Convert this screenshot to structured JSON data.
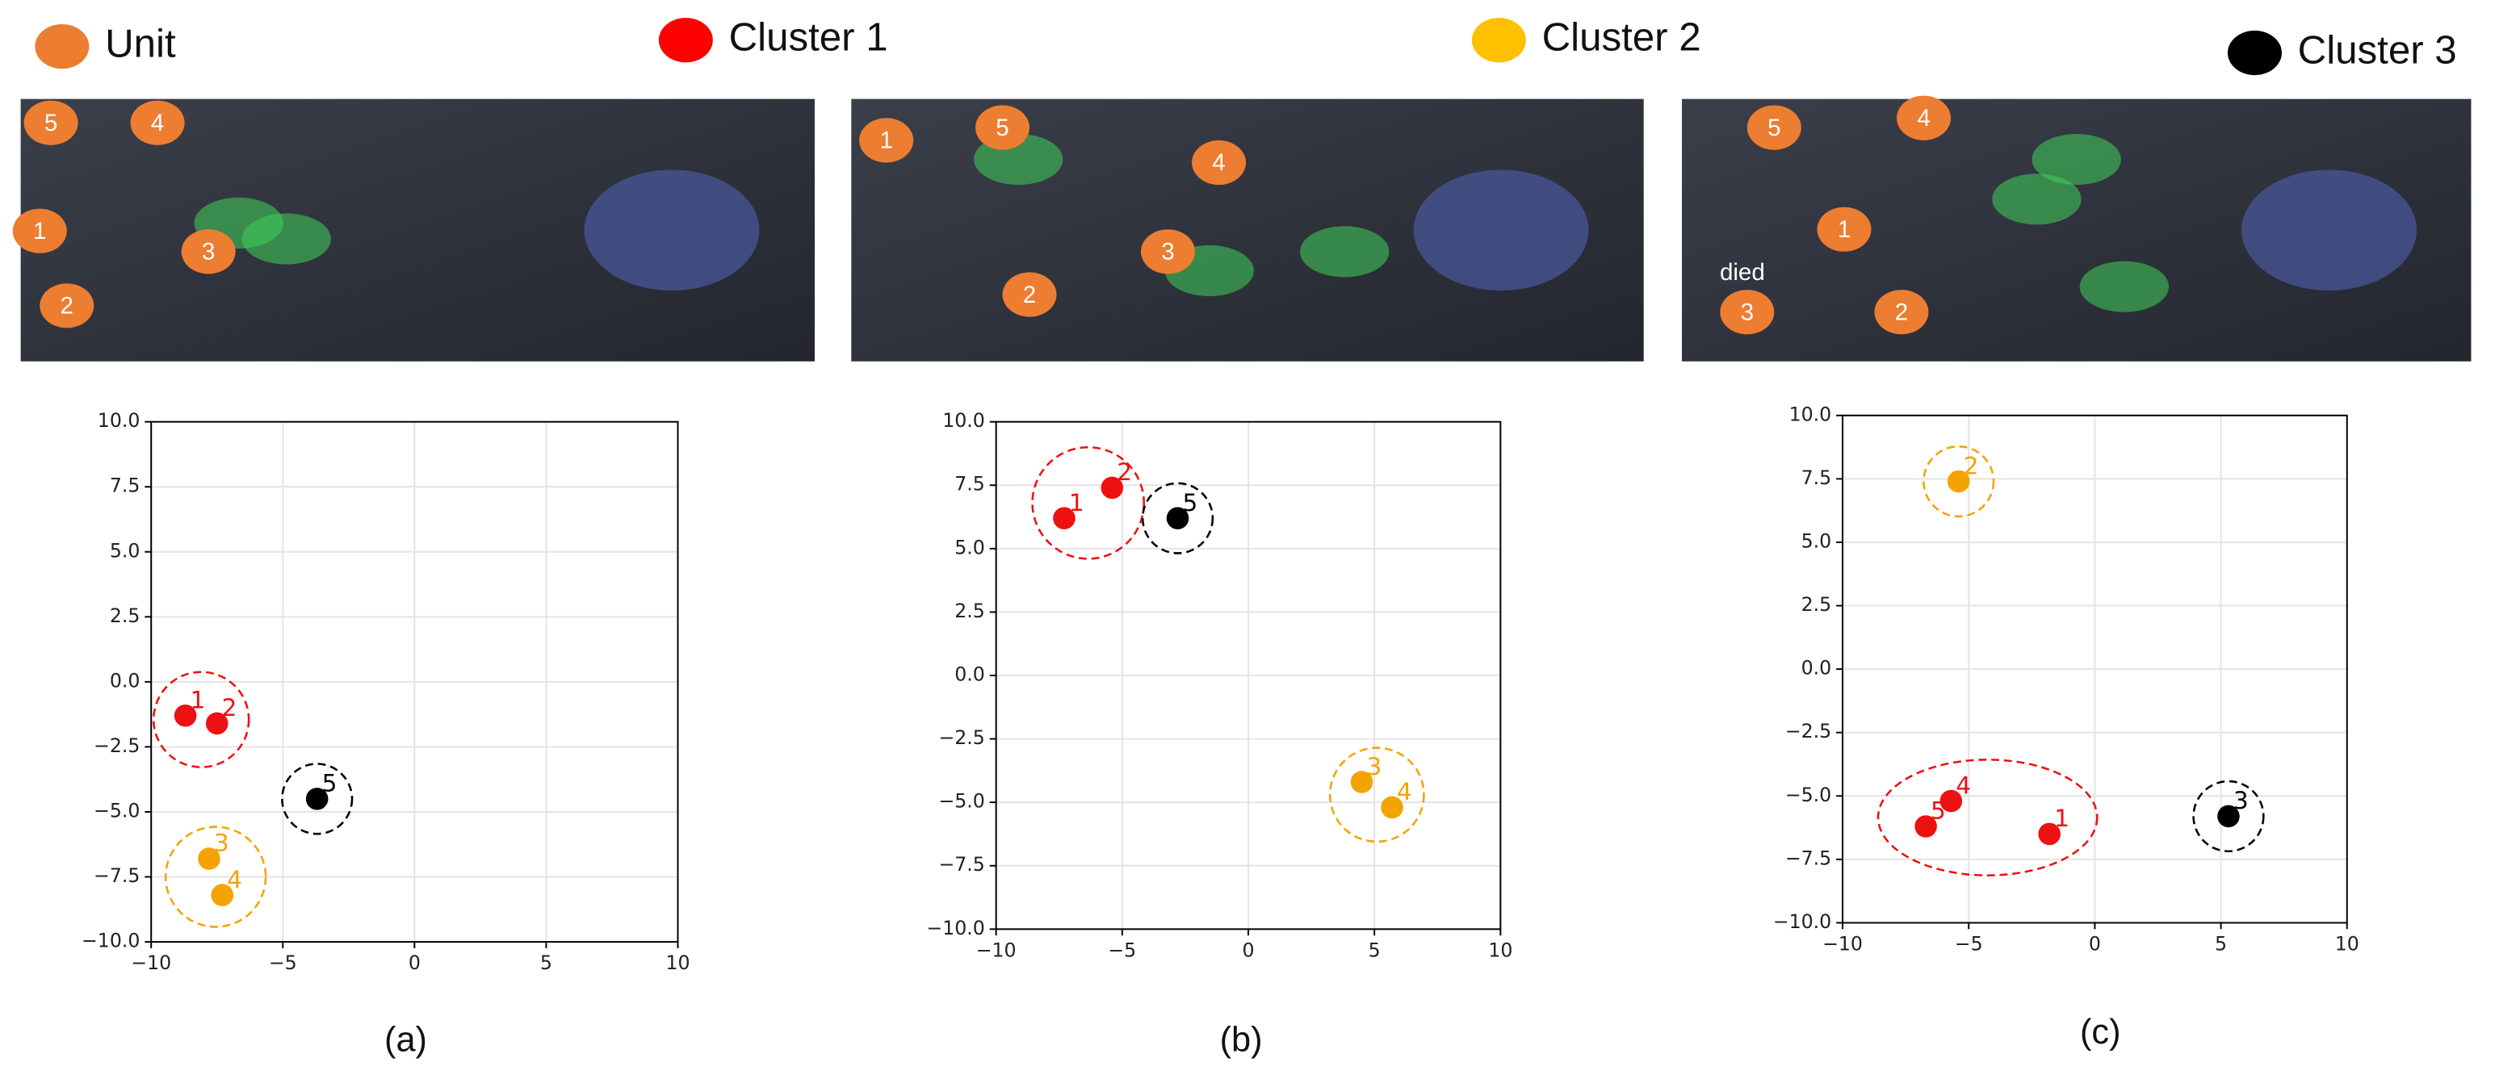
{
  "legend": [
    {
      "name": "Unit",
      "color": "#ed7d31"
    },
    {
      "name": "Cluster 1",
      "color": "#ff0000"
    },
    {
      "name": "Cluster 2",
      "color": "#ffc000"
    },
    {
      "name": "Cluster 3",
      "color": "#000000"
    }
  ],
  "screenshots": [
    {
      "units": [
        "5",
        "4",
        "1",
        "3",
        "2"
      ]
    },
    {
      "units": [
        "1",
        "5",
        "4",
        "3",
        "2"
      ]
    },
    {
      "units": [
        "5",
        "4",
        "1",
        "2",
        "3"
      ],
      "annotation": "died"
    }
  ],
  "captions": [
    "(a)",
    "(b)",
    "(c)"
  ],
  "chart_data": [
    {
      "type": "scatter",
      "xlim": [
        -10,
        10
      ],
      "ylim": [
        -10,
        10
      ],
      "xticks": [
        {
          "value": -10,
          "label": "−10"
        },
        {
          "value": -5,
          "label": "−5"
        },
        0,
        5,
        10
      ],
      "yticks": [
        {
          "value": 10,
          "label": "10.0"
        },
        {
          "value": 7.5,
          "label": "7.5"
        },
        {
          "value": 5,
          "label": "5.0"
        },
        {
          "value": 2.5,
          "label": "2.5"
        },
        {
          "value": 0,
          "label": "0.0"
        },
        {
          "value": -2.5,
          "label": "−2.5"
        },
        {
          "value": -5,
          "label": "−5.0"
        },
        {
          "value": -7.5,
          "label": "−7.5"
        },
        {
          "value": -10,
          "label": "−10.0"
        }
      ],
      "grid": true,
      "series": [
        {
          "color": "#ee1111",
          "x": [
            -8.7,
            -7.5
          ],
          "y": [
            -1.3,
            -1.6
          ],
          "labels": [
            "1",
            "2"
          ]
        },
        {
          "color": "#f5a300",
          "x": [
            -7.8,
            -7.3
          ],
          "y": [
            -6.8,
            -8.2
          ],
          "labels": [
            "3",
            "4"
          ]
        },
        {
          "color": "#000000",
          "x": [
            -3.7
          ],
          "y": [
            -4.5
          ],
          "labels": [
            "5"
          ]
        }
      ]
    },
    {
      "type": "scatter",
      "xlim": [
        -10,
        10
      ],
      "ylim": [
        -10,
        10
      ],
      "xticks": [
        {
          "value": -10,
          "label": "−10"
        },
        {
          "value": -5,
          "label": "−5"
        },
        0,
        5,
        10
      ],
      "yticks": [
        {
          "value": 10,
          "label": "10.0"
        },
        {
          "value": 7.5,
          "label": "7.5"
        },
        {
          "value": 5,
          "label": "5.0"
        },
        {
          "value": 2.5,
          "label": "2.5"
        },
        {
          "value": 0,
          "label": "0.0"
        },
        {
          "value": -2.5,
          "label": "−2.5"
        },
        {
          "value": -5,
          "label": "−5.0"
        },
        {
          "value": -7.5,
          "label": "−7.5"
        },
        {
          "value": -10,
          "label": "−10.0"
        }
      ],
      "grid": true,
      "series": [
        {
          "color": "#ee1111",
          "x": [
            -7.3,
            -5.4
          ],
          "y": [
            6.2,
            7.4
          ],
          "labels": [
            "1",
            "2"
          ]
        },
        {
          "color": "#f5a300",
          "x": [
            4.5,
            5.7
          ],
          "y": [
            -4.2,
            -5.2
          ],
          "labels": [
            "3",
            "4"
          ]
        },
        {
          "color": "#000000",
          "x": [
            -2.8
          ],
          "y": [
            6.2
          ],
          "labels": [
            "5"
          ]
        }
      ]
    },
    {
      "type": "scatter",
      "xlim": [
        -10,
        10
      ],
      "ylim": [
        -10,
        10
      ],
      "xticks": [
        {
          "value": -10,
          "label": "−10"
        },
        {
          "value": -5,
          "label": "−5"
        },
        0,
        5,
        10
      ],
      "yticks": [
        {
          "value": 10,
          "label": "10.0"
        },
        {
          "value": 7.5,
          "label": "7.5"
        },
        {
          "value": 5,
          "label": "5.0"
        },
        {
          "value": 2.5,
          "label": "2.5"
        },
        {
          "value": 0,
          "label": "0.0"
        },
        {
          "value": -2.5,
          "label": "−2.5"
        },
        {
          "value": -5,
          "label": "−5.0"
        },
        {
          "value": -7.5,
          "label": "−7.5"
        },
        {
          "value": -10,
          "label": "−10.0"
        }
      ],
      "grid": true,
      "series": [
        {
          "color": "#ee1111",
          "x": [
            -1.8,
            -5.7,
            -6.7
          ],
          "y": [
            -6.5,
            -5.2,
            -6.2
          ],
          "labels": [
            "1",
            "4",
            "5"
          ]
        },
        {
          "color": "#f5a300",
          "x": [
            -5.4
          ],
          "y": [
            7.4
          ],
          "labels": [
            "2"
          ]
        },
        {
          "color": "#000000",
          "x": [
            5.3
          ],
          "y": [
            -5.8
          ],
          "labels": [
            "3"
          ]
        }
      ]
    }
  ]
}
